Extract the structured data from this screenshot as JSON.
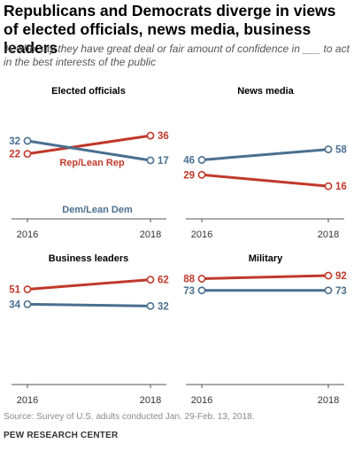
{
  "title": "Republicans and Democrats diverge in views of elected officials, news media, business leaders",
  "subtitle": "% who say they have great deal or fair amount of confidence in ___ to act in the best interests of the public",
  "source": "Source: Survey of U.S. adults conducted Jan. 29-Feb. 13, 2018.",
  "org": "PEW RESEARCH CENTER",
  "colors": {
    "rep": "#c0392b",
    "dem": "#4a6f8f",
    "axis": "#555555"
  },
  "chart_data": [
    {
      "type": "line",
      "title": "Elected officials",
      "x": [
        "2016",
        "2018"
      ],
      "series": [
        {
          "name": "Rep/Lean Rep",
          "values": [
            22,
            36
          ]
        },
        {
          "name": "Dem/Lean Dem",
          "values": [
            32,
            17
          ]
        }
      ]
    },
    {
      "type": "line",
      "title": "News media",
      "x": [
        "2016",
        "2018"
      ],
      "series": [
        {
          "values": [
            29,
            16
          ]
        },
        {
          "values": [
            46,
            58
          ]
        }
      ]
    },
    {
      "type": "line",
      "title": "Business leaders",
      "x": [
        "2016",
        "2018"
      ],
      "series": [
        {
          "values": [
            51,
            62
          ]
        },
        {
          "values": [
            34,
            32
          ]
        }
      ]
    },
    {
      "type": "line",
      "title": "Military",
      "x": [
        "2016",
        "2018"
      ],
      "series": [
        {
          "values": [
            88,
            92
          ]
        },
        {
          "values": [
            73,
            73
          ]
        }
      ]
    }
  ]
}
